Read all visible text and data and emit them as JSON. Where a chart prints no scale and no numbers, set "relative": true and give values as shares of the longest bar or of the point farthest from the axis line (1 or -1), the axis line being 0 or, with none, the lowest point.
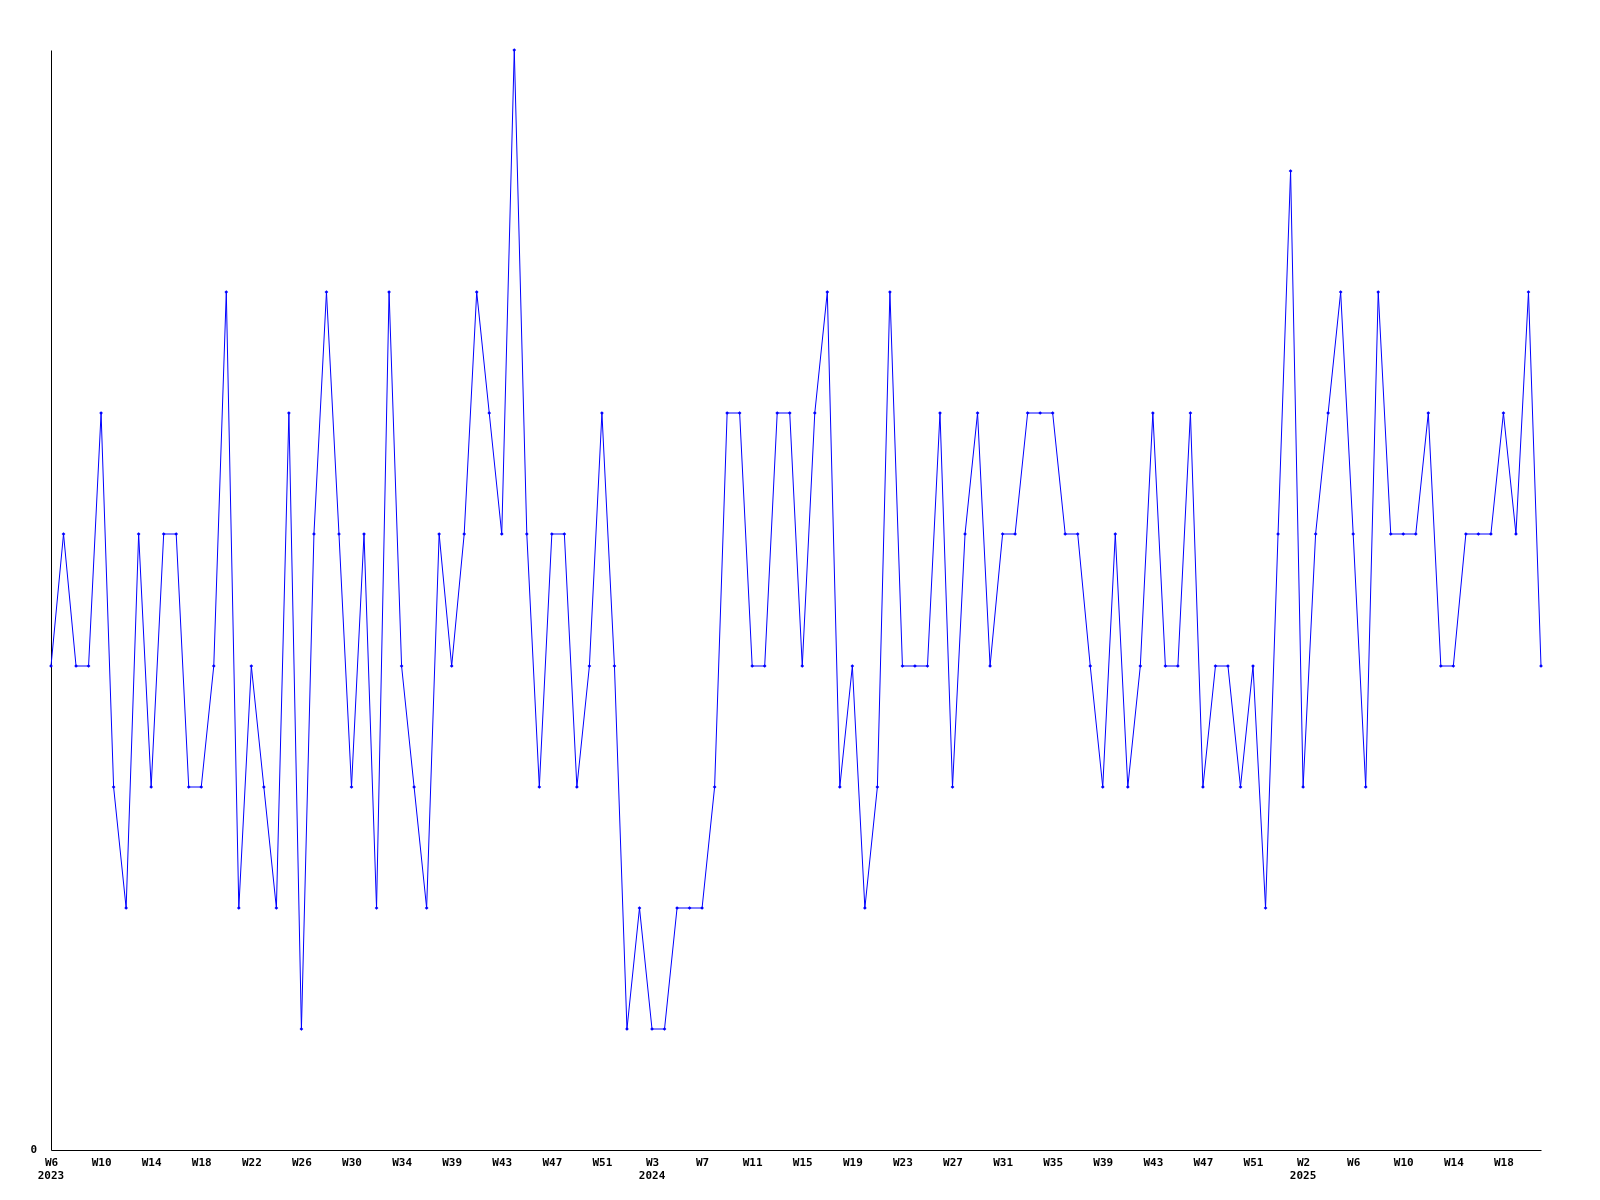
{
  "chart_data": {
    "type": "line",
    "relative": true,
    "color": "#0000ff",
    "marker": "diamond",
    "line_style": "solid",
    "x": [
      "2023-02-06",
      "2023-02-13",
      "2023-02-20",
      "2023-02-27",
      "2023-03-06",
      "2023-03-13",
      "2023-03-20",
      "2023-03-27",
      "2023-04-03",
      "2023-04-10",
      "2023-04-17",
      "2023-04-24",
      "2023-05-01",
      "2023-05-08",
      "2023-05-15",
      "2023-05-22",
      "2023-05-29",
      "2023-06-05",
      "2023-06-12",
      "2023-06-19",
      "2023-06-26",
      "2023-07-03",
      "2023-07-10",
      "2023-07-17",
      "2023-07-24",
      "2023-07-31",
      "2023-08-07",
      "2023-08-14",
      "2023-08-21",
      "2023-08-28",
      "2023-09-04",
      "2023-09-11",
      "2023-09-18",
      "2023-09-25",
      "2023-10-02",
      "2023-10-09",
      "2023-10-16",
      "2023-10-23",
      "2023-10-30",
      "2023-11-06",
      "2023-11-13",
      "2023-11-20",
      "2023-11-27",
      "2023-12-04",
      "2023-12-11",
      "2023-12-18",
      "2023-12-25",
      "2024-01-01",
      "2024-01-08",
      "2024-01-15",
      "2024-01-22",
      "2024-01-29",
      "2024-02-05",
      "2024-02-12",
      "2024-02-19",
      "2024-02-26",
      "2024-03-04",
      "2024-03-11",
      "2024-03-18",
      "2024-03-25",
      "2024-04-01",
      "2024-04-08",
      "2024-04-15",
      "2024-04-22",
      "2024-04-29",
      "2024-05-06",
      "2024-05-13",
      "2024-05-20",
      "2024-05-27",
      "2024-06-03",
      "2024-06-10",
      "2024-06-17",
      "2024-06-24",
      "2024-07-01",
      "2024-07-08",
      "2024-07-15",
      "2024-07-22",
      "2024-07-29",
      "2024-08-05",
      "2024-08-12",
      "2024-08-19",
      "2024-08-26",
      "2024-09-02",
      "2024-09-09",
      "2024-09-16",
      "2024-09-23",
      "2024-09-30",
      "2024-10-07",
      "2024-10-14",
      "2024-10-21",
      "2024-10-28",
      "2024-11-04",
      "2024-11-11",
      "2024-11-18",
      "2024-11-25",
      "2024-12-02",
      "2024-12-09",
      "2024-12-16",
      "2024-12-23",
      "2024-12-30",
      "2025-01-06",
      "2025-01-13",
      "2025-01-20",
      "2025-01-27",
      "2025-02-03",
      "2025-02-10",
      "2025-02-17",
      "2025-02-24",
      "2025-03-03",
      "2025-03-10",
      "2025-03-17",
      "2025-03-24",
      "2025-03-31",
      "2025-04-07",
      "2025-04-14",
      "2025-04-21",
      "2025-04-28",
      "2025-05-05",
      "2025-05-12",
      "2025-05-19"
    ],
    "values": [
      0.44,
      0.56,
      0.44,
      0.44,
      0.67,
      0.33,
      0.22,
      0.56,
      0.33,
      0.56,
      0.56,
      0.33,
      0.33,
      0.44,
      0.78,
      0.22,
      0.44,
      0.33,
      0.22,
      0.67,
      0.11,
      0.56,
      0.78,
      0.56,
      0.33,
      0.56,
      0.22,
      0.78,
      0.44,
      0.33,
      0.22,
      0.56,
      0.44,
      0.56,
      0.78,
      0.67,
      0.56,
      1,
      0.56,
      0.33,
      0.56,
      0.56,
      0.33,
      0.44,
      0.67,
      0.44,
      0.11,
      0.22,
      0.11,
      0.11,
      0.22,
      0.22,
      0.22,
      0.33,
      0.67,
      0.67,
      0.44,
      0.44,
      0.67,
      0.67,
      0.44,
      0.67,
      0.78,
      0.33,
      0.44,
      0.22,
      0.33,
      0.78,
      0.44,
      0.44,
      0.44,
      0.67,
      0.33,
      0.56,
      0.67,
      0.44,
      0.56,
      0.56,
      0.67,
      0.67,
      0.67,
      0.56,
      0.56,
      0.44,
      0.33,
      0.56,
      0.33,
      0.44,
      0.67,
      0.44,
      0.44,
      0.67,
      0.33,
      0.44,
      0.44,
      0.33,
      0.44,
      0.22,
      0.56,
      0.89,
      0.33,
      0.56,
      0.67,
      0.78,
      0.56,
      0.33,
      0.78,
      0.56,
      0.56,
      0.56,
      0.67,
      0.44,
      0.44,
      0.56,
      0.56,
      0.56,
      0.67,
      0.56,
      0.78,
      0.44
    ],
    "xticks": [
      {
        "value": "2023-02-06",
        "label": "W6"
      },
      {
        "value": "2023-03-06",
        "label": "W10"
      },
      {
        "value": "2023-04-03",
        "label": "W14"
      },
      {
        "value": "2023-05-01",
        "label": "W18"
      },
      {
        "value": "2023-05-29",
        "label": "W22"
      },
      {
        "value": "2023-06-26",
        "label": "W26"
      },
      {
        "value": "2023-07-24",
        "label": "W30"
      },
      {
        "value": "2023-08-21",
        "label": "W34"
      },
      {
        "value": "2023-09-18",
        "label": "W39"
      },
      {
        "value": "2023-10-16",
        "label": "W43"
      },
      {
        "value": "2023-11-13",
        "label": "W47"
      },
      {
        "value": "2023-12-11",
        "label": "W51"
      },
      {
        "value": "2024-01-08",
        "label": "W3"
      },
      {
        "value": "2024-02-05",
        "label": "W7"
      },
      {
        "value": "2024-03-04",
        "label": "W11"
      },
      {
        "value": "2024-04-01",
        "label": "W15"
      },
      {
        "value": "2024-04-29",
        "label": "W19"
      },
      {
        "value": "2024-05-27",
        "label": "W23"
      },
      {
        "value": "2024-06-24",
        "label": "W27"
      },
      {
        "value": "2024-07-22",
        "label": "W31"
      },
      {
        "value": "2024-08-19",
        "label": "W35"
      },
      {
        "value": "2024-09-16",
        "label": "W39"
      },
      {
        "value": "2024-10-14",
        "label": "W43"
      },
      {
        "value": "2024-11-11",
        "label": "W47"
      },
      {
        "value": "2024-12-09",
        "label": "W51"
      },
      {
        "value": "2025-01-06",
        "label": "W2"
      },
      {
        "value": "2025-02-03",
        "label": "W6"
      },
      {
        "value": "2025-03-03",
        "label": "W10"
      },
      {
        "value": "2025-03-31",
        "label": "W14"
      },
      {
        "value": "2025-04-28",
        "label": "W18"
      }
    ],
    "xlim": [
      "2023-02-06",
      "2025-05-19"
    ],
    "annotations": [
      "0",
      "2023",
      "2024",
      "2025"
    ]
  }
}
